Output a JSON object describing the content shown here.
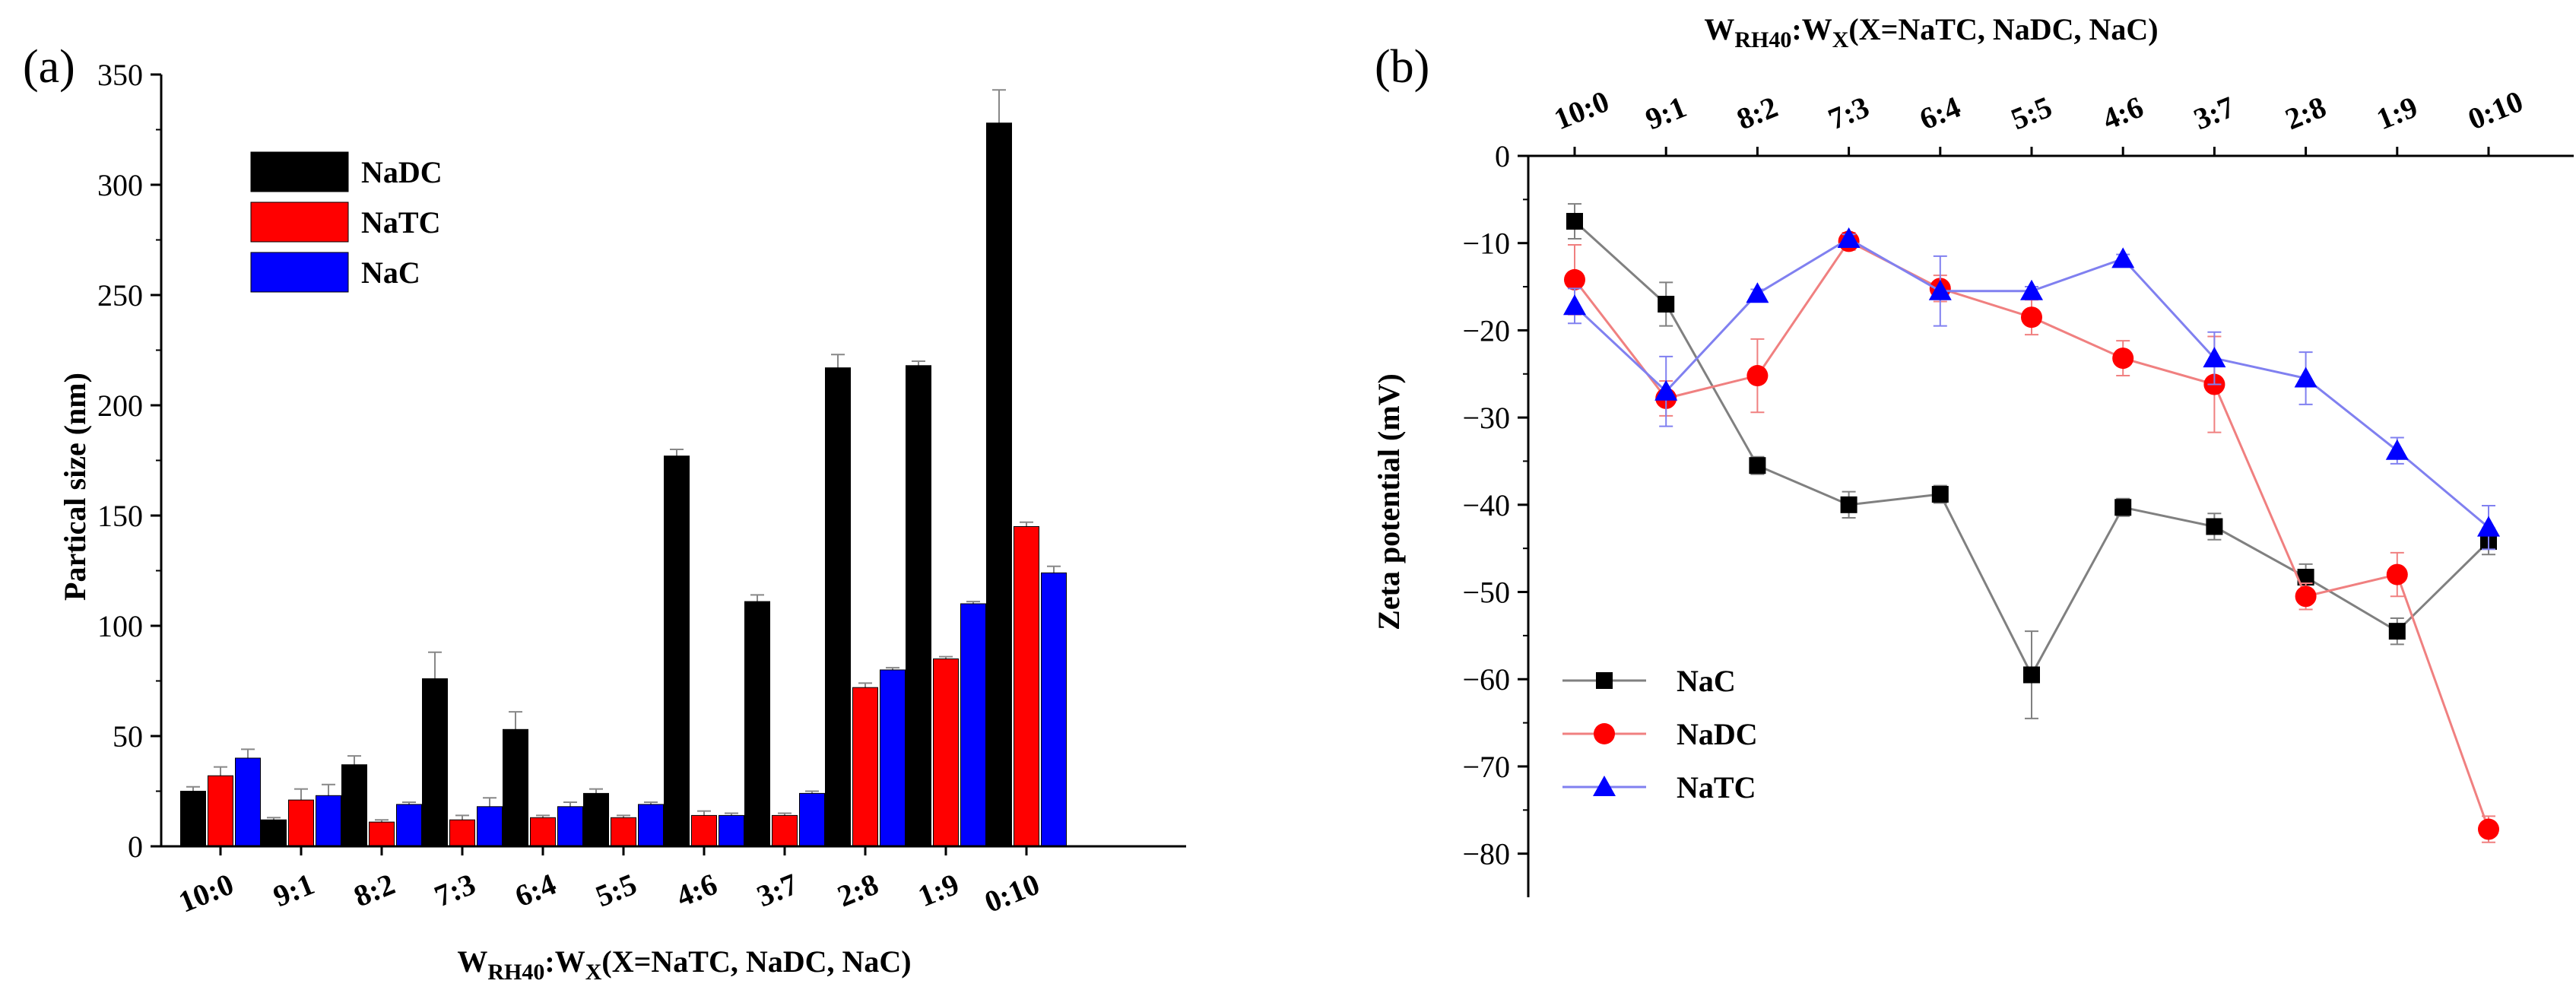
{
  "chart_data": [
    {
      "panel_label": "(a)",
      "type": "bar",
      "categories": [
        "10:0",
        "9:1",
        "8:2",
        "7:3",
        "6:4",
        "5:5",
        "4:6",
        "3:7",
        "2:8",
        "1:9",
        "0:10"
      ],
      "series": [
        {
          "name": "NaDC",
          "color": "#000000",
          "values": [
            25,
            12,
            37,
            76,
            53,
            24,
            177,
            111,
            217,
            218,
            328
          ],
          "errors": [
            2,
            1,
            4,
            12,
            8,
            2,
            3,
            3,
            6,
            2,
            15
          ]
        },
        {
          "name": "NaTC",
          "color": "#ff0000",
          "values": [
            32,
            21,
            11,
            12,
            13,
            13,
            14,
            14,
            72,
            85,
            145
          ],
          "errors": [
            4,
            5,
            1,
            2,
            1,
            1,
            2,
            1,
            2,
            1,
            2
          ]
        },
        {
          "name": "NaC",
          "color": "#0000ff",
          "values": [
            40,
            23,
            19,
            18,
            18,
            19,
            14,
            24,
            80,
            110,
            124
          ],
          "errors": [
            4,
            5,
            1,
            4,
            2,
            1,
            1,
            1,
            1,
            1,
            3
          ]
        }
      ],
      "ylabel": "Partical size (nm)",
      "xlabel": {
        "main": "W",
        "sub1": "RH40",
        "colon": ":W",
        "sub2": "X",
        "rest": "(X=NaTC, NaDC, NaC)"
      },
      "ylim": [
        0,
        350
      ],
      "yticks": [
        0,
        50,
        100,
        150,
        200,
        250,
        300,
        350
      ],
      "legend_position": "top-left",
      "grid": false
    },
    {
      "panel_label": "(b)",
      "type": "line",
      "categories": [
        "10:0",
        "9:1",
        "8:2",
        "7:3",
        "6:4",
        "5:5",
        "4:6",
        "3:7",
        "2:8",
        "1:9",
        "0:10"
      ],
      "series": [
        {
          "name": "NaC",
          "color": "#000000",
          "line_color": "#808080",
          "marker": "square",
          "values": [
            -7.5,
            -17,
            -35.5,
            -40,
            -38.8,
            -59.5,
            -40.3,
            -42.5,
            -48.3,
            -54.5,
            -44.2
          ],
          "errors": [
            2,
            2.5,
            1,
            1.5,
            1,
            5,
            1,
            1.5,
            1.5,
            1.5,
            1.5
          ]
        },
        {
          "name": "NaDC",
          "color": "#ff0000",
          "line_color": "#f08080",
          "marker": "circle",
          "values": [
            -14.2,
            -27.8,
            -25.2,
            -9.8,
            -15.2,
            -18.5,
            -23.2,
            -26.2,
            -50.5,
            -48.0,
            -77.2
          ],
          "errors": [
            4,
            2,
            4.2,
            1,
            1.5,
            2,
            2,
            5.5,
            1.5,
            2.5,
            1.5
          ]
        },
        {
          "name": "NaTC",
          "color": "#0000ff",
          "line_color": "#8080f0",
          "marker": "triangle",
          "values": [
            -17.2,
            -27.0,
            -15.8,
            -9.5,
            -15.5,
            -15.5,
            -11.8,
            -23.2,
            -25.5,
            -33.8,
            -42.6
          ],
          "errors": [
            2,
            4,
            0.5,
            0.5,
            4,
            0.5,
            0.5,
            3,
            3,
            1.5,
            2.5
          ]
        }
      ],
      "ylabel": "Zeta potential (mV)",
      "xlabel": {
        "main": "W",
        "sub1": "RH40",
        "colon": ":W",
        "sub2": "X",
        "rest": "(X=NaTC, NaDC, NaC)"
      },
      "ylim": [
        -85,
        0
      ],
      "yticks": [
        0,
        -10,
        -20,
        -30,
        -40,
        -50,
        -60,
        -70,
        -80
      ],
      "x_axis_position": "top",
      "legend_position": "bottom-left",
      "grid": false
    }
  ]
}
